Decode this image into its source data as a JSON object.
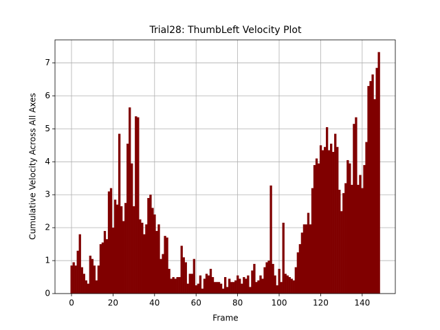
{
  "chart_data": {
    "type": "bar",
    "title": "Trial28: ThumbLeft Velocity Plot",
    "xlabel": "Frame",
    "ylabel": "Cumulative Velocity Across All Axes",
    "color": "#800000",
    "grid": true,
    "x": [
      0,
      1,
      2,
      3,
      4,
      5,
      6,
      7,
      8,
      9,
      10,
      11,
      12,
      13,
      14,
      15,
      16,
      17,
      18,
      19,
      20,
      21,
      22,
      23,
      24,
      25,
      26,
      27,
      28,
      29,
      30,
      31,
      32,
      33,
      34,
      35,
      36,
      37,
      38,
      39,
      40,
      41,
      42,
      43,
      44,
      45,
      46,
      47,
      48,
      49,
      50,
      51,
      52,
      53,
      54,
      55,
      56,
      57,
      58,
      59,
      60,
      61,
      62,
      63,
      64,
      65,
      66,
      67,
      68,
      69,
      70,
      71,
      72,
      73,
      74,
      75,
      76,
      77,
      78,
      79,
      80,
      81,
      82,
      83,
      84,
      85,
      86,
      87,
      88,
      89,
      90,
      91,
      92,
      93,
      94,
      95,
      96,
      97,
      98,
      99,
      100,
      101,
      102,
      103,
      104,
      105,
      106,
      107,
      108,
      109,
      110,
      111,
      112,
      113,
      114,
      115,
      116,
      117,
      118,
      119,
      120,
      121,
      122,
      123,
      124,
      125,
      126,
      127,
      128,
      129,
      130,
      131,
      132,
      133,
      134,
      135,
      136,
      137,
      138,
      139,
      140,
      141,
      142,
      143,
      144,
      145,
      146,
      147,
      148
    ],
    "values": [
      0.85,
      0.95,
      0.85,
      1.3,
      1.8,
      0.8,
      0.6,
      0.4,
      0.3,
      1.15,
      1.05,
      0.85,
      0.4,
      0.85,
      1.5,
      1.55,
      1.9,
      1.65,
      3.1,
      3.2,
      2.0,
      2.85,
      2.7,
      4.85,
      2.65,
      2.2,
      2.75,
      4.55,
      5.65,
      3.95,
      2.65,
      5.38,
      5.35,
      2.25,
      2.15,
      1.8,
      2.1,
      2.9,
      3.0,
      2.6,
      2.4,
      1.9,
      2.1,
      1.05,
      1.2,
      1.75,
      1.7,
      0.75,
      0.45,
      0.5,
      0.45,
      0.5,
      0.5,
      1.45,
      1.1,
      0.95,
      0.3,
      0.6,
      0.6,
      1.05,
      0.25,
      0.3,
      0.55,
      0.15,
      0.45,
      0.6,
      0.55,
      0.75,
      0.5,
      0.35,
      0.35,
      0.35,
      0.3,
      0.15,
      0.5,
      0.2,
      0.45,
      0.35,
      0.35,
      0.4,
      0.55,
      0.45,
      0.3,
      0.5,
      0.45,
      0.55,
      0.2,
      0.7,
      0.9,
      0.35,
      0.4,
      0.55,
      0.45,
      0.8,
      0.95,
      1.0,
      3.28,
      0.9,
      0.55,
      0.25,
      0.75,
      0.35,
      2.15,
      0.6,
      0.55,
      0.5,
      0.45,
      0.4,
      0.8,
      1.25,
      1.5,
      1.85,
      2.1,
      2.1,
      2.45,
      2.1,
      3.2,
      3.9,
      4.1,
      3.95,
      4.5,
      4.35,
      4.45,
      5.05,
      4.35,
      4.55,
      4.3,
      4.85,
      4.45,
      3.15,
      2.5,
      3.05,
      3.35,
      4.05,
      3.95,
      3.3,
      5.15,
      5.35,
      3.3,
      3.6,
      3.2,
      3.9,
      4.6,
      6.3,
      6.45,
      6.65,
      5.9,
      6.85,
      7.33
    ],
    "xlim": [
      -7.95,
      155.95
    ],
    "xticks": [
      0,
      20,
      40,
      60,
      80,
      100,
      120,
      140
    ],
    "ylim": [
      0,
      7.7
    ],
    "yticks": [
      0,
      1,
      2,
      3,
      4,
      5,
      6,
      7
    ]
  }
}
